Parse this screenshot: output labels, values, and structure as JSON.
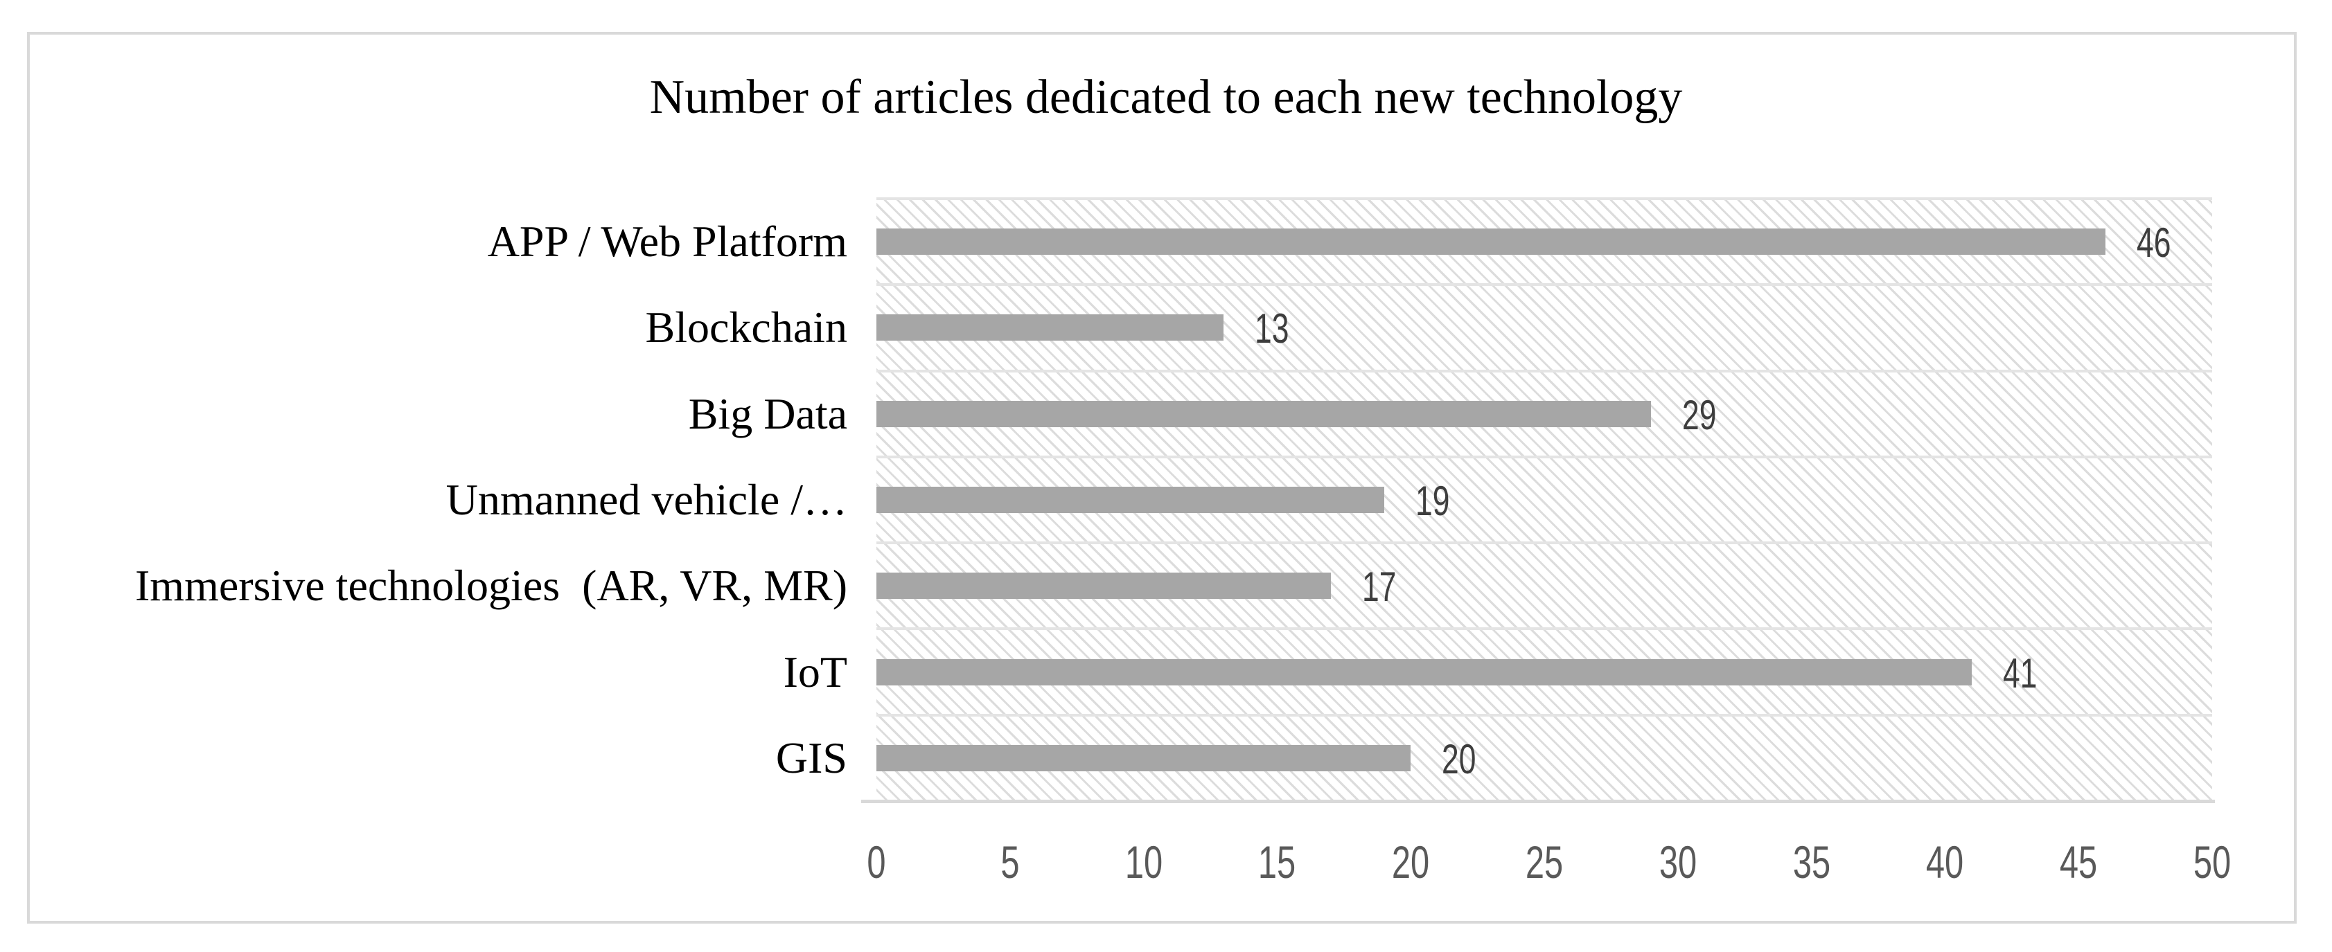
{
  "chart_data": {
    "type": "bar",
    "orientation": "horizontal-bars",
    "title": "Number of articles dedicated to each new technology",
    "categories": [
      "APP / Web Platform",
      "Blockchain",
      "Big Data",
      "Unmanned vehicle /…",
      "Immersive technologies  (AR, VR, MR)",
      "IoT",
      "GIS"
    ],
    "values": [
      46,
      13,
      29,
      19,
      17,
      41,
      20
    ],
    "data_labels": [
      "46",
      "13",
      "29",
      "19",
      "17",
      "41",
      "20"
    ],
    "xlabel": "",
    "ylabel": "",
    "xlim": [
      0,
      50
    ],
    "x_ticks": [
      "0",
      "5",
      "10",
      "15",
      "20",
      "25",
      "30",
      "35",
      "40",
      "45",
      "50"
    ],
    "grid": "horizontal-category-gridlines-on",
    "legend": "none",
    "plot_fill_pattern": "light-downward-diagonal-hatch"
  },
  "style": {
    "bar_color": "#a6a6a6",
    "hatch_line_color": "#c9c9c9",
    "gridline_color": "#e4e4e4",
    "axis_line_color": "#d9d9d9",
    "chart_border_color": "#d9d9d9",
    "tick_text_color": "#595959",
    "value_text_color": "#3d3d3d",
    "title_text_color": "#000000",
    "background_color": "#ffffff"
  }
}
